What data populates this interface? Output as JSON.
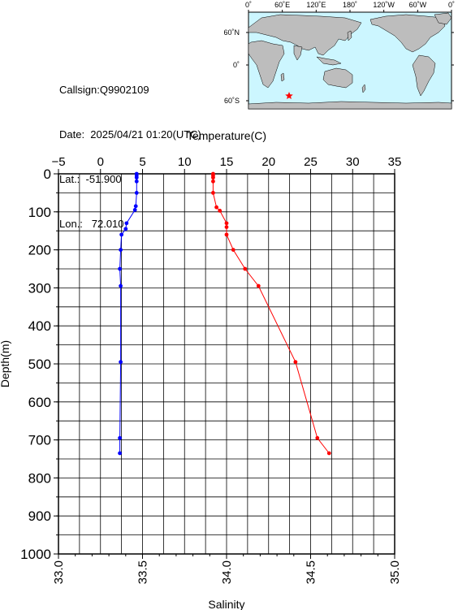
{
  "info": {
    "callsign": "Callsign:Q9902109",
    "date": "Date:  2025/04/21 01:20(UTC)",
    "lat": "Lat.:  -51.900",
    "lon": "Lon.:   72.010"
  },
  "map": {
    "top_lon_labels": [
      "0˚",
      "60˚E",
      "120˚E",
      "180˚",
      "120˚W",
      "60˚W",
      "0˚"
    ],
    "lat_labels": [
      "60˚N",
      "0˚",
      "60˚S"
    ],
    "ocean_color": "#ccf6ff",
    "land_color": "#bdbdbd",
    "marker_color": "#ff0000",
    "marker_icon": "star-icon"
  },
  "chart_data": {
    "type": "line",
    "top_axis": {
      "label": "Temperature(C)",
      "range": [
        -5,
        35
      ],
      "ticks": [
        "−5",
        "0",
        "5",
        "10",
        "15",
        "20",
        "25",
        "30",
        "35"
      ]
    },
    "bottom_axis": {
      "label": "Salinity",
      "range": [
        33.0,
        35.0
      ],
      "ticks": [
        "33.0",
        "33.5",
        "34.0",
        "34.5",
        "35.0"
      ]
    },
    "y_axis": {
      "label": "Depth(m)",
      "range": [
        0,
        1000
      ],
      "inverted": true,
      "ticks": [
        "0",
        "100",
        "200",
        "300",
        "400",
        "500",
        "600",
        "700",
        "800",
        "900",
        "1000"
      ]
    },
    "grid": true,
    "series": [
      {
        "axis": "temperature",
        "color": "#0000ff",
        "points": [
          [
            4.3,
            0
          ],
          [
            4.3,
            5
          ],
          [
            4.3,
            10
          ],
          [
            4.3,
            20
          ],
          [
            4.3,
            50
          ],
          [
            4.2,
            85
          ],
          [
            4.1,
            95
          ],
          [
            3.1,
            130
          ],
          [
            3.0,
            145
          ],
          [
            2.5,
            160
          ],
          [
            2.4,
            200
          ],
          [
            2.3,
            250
          ],
          [
            2.4,
            295
          ],
          [
            2.4,
            495
          ],
          [
            2.3,
            695
          ],
          [
            2.3,
            735
          ]
        ]
      },
      {
        "axis": "salinity",
        "color": "#ff0000",
        "points": [
          [
            33.92,
            0
          ],
          [
            33.92,
            5
          ],
          [
            33.92,
            10
          ],
          [
            33.92,
            20
          ],
          [
            33.92,
            50
          ],
          [
            33.94,
            88
          ],
          [
            33.96,
            97
          ],
          [
            34.0,
            130
          ],
          [
            34.0,
            140
          ],
          [
            34.0,
            160
          ],
          [
            34.04,
            200
          ],
          [
            34.11,
            250
          ],
          [
            34.19,
            295
          ],
          [
            34.41,
            495
          ],
          [
            34.54,
            695
          ],
          [
            34.61,
            735
          ]
        ]
      }
    ]
  }
}
